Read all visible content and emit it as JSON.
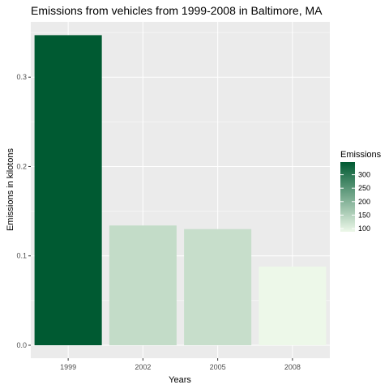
{
  "chart_data": {
    "type": "bar",
    "title": "Emissions from vehicles from 1999-2008 in Baltimore, MA",
    "xlabel": "Years",
    "ylabel": "Emissions in kilotons",
    "categories": [
      "1999",
      "2002",
      "2005",
      "2008"
    ],
    "values": [
      0.347,
      0.134,
      0.13,
      0.088
    ],
    "fill_values": [
      347,
      134,
      130,
      88
    ],
    "ylim": [
      0,
      0.35
    ],
    "y_ticks": [
      0.0,
      0.1,
      0.2,
      0.3
    ],
    "y_tick_labels": [
      "0.0",
      "0.1",
      "0.2",
      "0.3"
    ],
    "grid": true,
    "legend": {
      "title": "Emissions",
      "position": "right",
      "ticks": [
        100,
        150,
        200,
        250,
        300
      ],
      "tick_labels": [
        "100",
        "150",
        "200",
        "250",
        "300"
      ],
      "range": [
        88,
        347
      ],
      "color_low": "#edf8e9",
      "color_high": "#005a32"
    },
    "panel_background": "#ebebeb",
    "grid_color": "#ffffff"
  }
}
